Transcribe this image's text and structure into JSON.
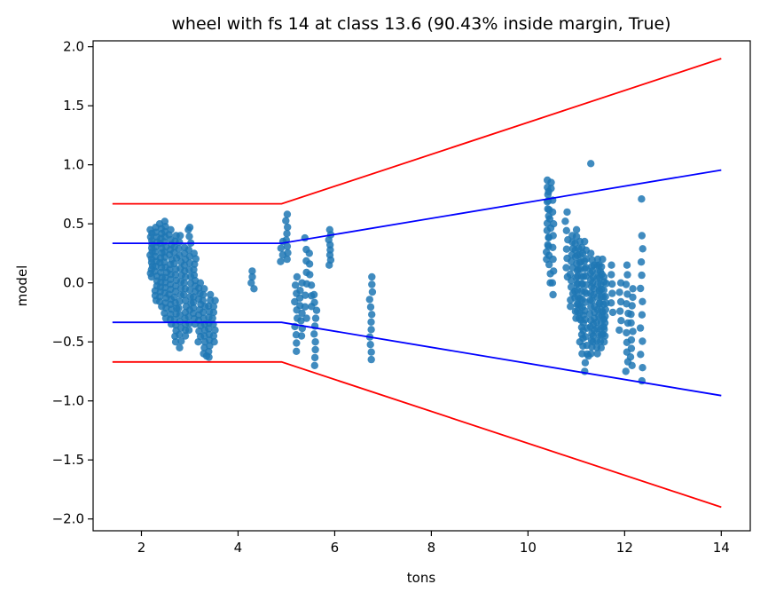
{
  "chart_data": {
    "type": "scatter",
    "title": "wheel with fs 14 at class 13.6 (90.43% inside margin, True)",
    "xlabel": "tons",
    "ylabel": "model",
    "xlim": [
      1.0,
      14.6
    ],
    "ylim": [
      -2.1,
      2.05
    ],
    "xticks": [
      2,
      4,
      6,
      8,
      10,
      12,
      14
    ],
    "xtick_labels": [
      "2",
      "4",
      "6",
      "8",
      "10",
      "12",
      "14"
    ],
    "yticks": [
      -2.0,
      -1.5,
      -1.0,
      -0.5,
      0.0,
      0.5,
      1.0,
      1.5,
      2.0
    ],
    "ytick_labels": [
      "−2.0",
      "−1.5",
      "−1.0",
      "−0.5",
      "0.0",
      "0.5",
      "1.0",
      "1.5",
      "2.0"
    ],
    "grid": false,
    "colors": {
      "points": "#1f77b4",
      "outer_margin": "#ff0000",
      "inner_margin": "#0000ff"
    },
    "lines": [
      {
        "color": "#ff0000",
        "x": [
          1.4,
          4.9,
          14.0
        ],
        "y": [
          0.67,
          0.67,
          1.9
        ]
      },
      {
        "color": "#0000ff",
        "x": [
          1.4,
          4.9,
          14.0
        ],
        "y": [
          0.335,
          0.335,
          0.955
        ]
      },
      {
        "color": "#0000ff",
        "x": [
          1.4,
          4.9,
          14.0
        ],
        "y": [
          -0.335,
          -0.335,
          -0.955
        ]
      },
      {
        "color": "#ff0000",
        "x": [
          1.4,
          4.9,
          14.0
        ],
        "y": [
          -0.67,
          -0.67,
          -1.9
        ]
      }
    ],
    "scatter_columns": [
      {
        "x": 2.2,
        "ymin": 0.05,
        "ymax": 0.45,
        "n": 14
      },
      {
        "x": 2.3,
        "ymin": -0.15,
        "ymax": 0.47,
        "n": 16
      },
      {
        "x": 2.4,
        "ymin": -0.2,
        "ymax": 0.5,
        "n": 18
      },
      {
        "x": 2.5,
        "ymin": -0.3,
        "ymax": 0.52,
        "n": 20
      },
      {
        "x": 2.6,
        "ymin": -0.35,
        "ymax": 0.45,
        "n": 20
      },
      {
        "x": 2.7,
        "ymin": -0.5,
        "ymax": 0.4,
        "n": 20
      },
      {
        "x": 2.8,
        "ymin": -0.55,
        "ymax": 0.4,
        "n": 18
      },
      {
        "x": 2.9,
        "ymin": -0.45,
        "ymax": 0.3,
        "n": 16
      },
      {
        "x": 3.0,
        "ymin": -0.4,
        "ymax": 0.45,
        "n": 16
      },
      {
        "x": 3.1,
        "ymin": -0.35,
        "ymax": 0.25,
        "n": 14
      },
      {
        "x": 3.2,
        "ymin": -0.5,
        "ymax": 0.0,
        "n": 12
      },
      {
        "x": 3.3,
        "ymin": -0.6,
        "ymax": -0.05,
        "n": 12
      },
      {
        "x": 3.4,
        "ymin": -0.63,
        "ymax": -0.1,
        "n": 12
      },
      {
        "x": 3.5,
        "ymin": -0.5,
        "ymax": -0.15,
        "n": 8
      },
      {
        "x": 4.3,
        "ymin": -0.05,
        "ymax": 0.1,
        "n": 4
      },
      {
        "x": 4.9,
        "ymin": 0.18,
        "ymax": 0.35,
        "n": 4
      },
      {
        "x": 5.0,
        "ymin": 0.2,
        "ymax": 0.58,
        "n": 8
      },
      {
        "x": 5.2,
        "ymin": -0.58,
        "ymax": 0.05,
        "n": 10
      },
      {
        "x": 5.3,
        "ymin": -0.45,
        "ymax": 0.0,
        "n": 8
      },
      {
        "x": 5.4,
        "ymin": -0.3,
        "ymax": 0.38,
        "n": 8
      },
      {
        "x": 5.5,
        "ymin": -0.2,
        "ymax": 0.25,
        "n": 6
      },
      {
        "x": 5.6,
        "ymin": -0.7,
        "ymax": -0.1,
        "n": 10
      },
      {
        "x": 5.9,
        "ymin": 0.15,
        "ymax": 0.45,
        "n": 8
      },
      {
        "x": 6.75,
        "ymin": -0.65,
        "ymax": 0.05,
        "n": 12
      },
      {
        "x": 10.4,
        "ymin": 0.2,
        "ymax": 0.87,
        "n": 12
      },
      {
        "x": 10.45,
        "ymin": 0.0,
        "ymax": 0.85,
        "n": 12
      },
      {
        "x": 10.5,
        "ymin": -0.1,
        "ymax": 0.8,
        "n": 10
      },
      {
        "x": 10.8,
        "ymin": 0.05,
        "ymax": 0.6,
        "n": 8
      },
      {
        "x": 10.9,
        "ymin": -0.2,
        "ymax": 0.4,
        "n": 12
      },
      {
        "x": 11.0,
        "ymin": -0.3,
        "ymax": 0.45,
        "n": 14
      },
      {
        "x": 11.05,
        "ymin": -0.3,
        "ymax": 0.35,
        "n": 12
      },
      {
        "x": 11.1,
        "ymin": -0.5,
        "ymax": 0.3,
        "n": 14
      },
      {
        "x": 11.15,
        "ymin": -0.6,
        "ymax": 0.25,
        "n": 14
      },
      {
        "x": 11.2,
        "ymin": -0.75,
        "ymax": 0.35,
        "n": 16
      },
      {
        "x": 11.3,
        "ymin": -0.6,
        "ymax": 0.25,
        "n": 16
      },
      {
        "x": 11.35,
        "ymin": -0.5,
        "ymax": 0.15,
        "n": 14
      },
      {
        "x": 11.45,
        "ymin": -0.6,
        "ymax": 0.2,
        "n": 16
      },
      {
        "x": 11.5,
        "ymin": -0.55,
        "ymax": 0.15,
        "n": 14
      },
      {
        "x": 11.55,
        "ymin": -0.5,
        "ymax": 0.2,
        "n": 12
      },
      {
        "x": 11.6,
        "ymin": -0.45,
        "ymax": 0.05,
        "n": 10
      },
      {
        "x": 11.75,
        "ymin": -0.25,
        "ymax": 0.15,
        "n": 6
      },
      {
        "x": 11.9,
        "ymin": -0.4,
        "ymax": 0.0,
        "n": 6
      },
      {
        "x": 12.05,
        "ymin": -0.75,
        "ymax": 0.15,
        "n": 12
      },
      {
        "x": 12.15,
        "ymin": -0.7,
        "ymax": -0.05,
        "n": 10
      },
      {
        "x": 12.35,
        "ymin": -0.83,
        "ymax": 0.4,
        "n": 12
      }
    ],
    "scatter_points": [
      {
        "x": 11.3,
        "y": 1.01
      },
      {
        "x": 12.35,
        "y": 0.71
      },
      {
        "x": 3.0,
        "y": 0.47
      },
      {
        "x": 11.25,
        "y": -0.62
      },
      {
        "x": 3.35,
        "y": -0.62
      }
    ]
  }
}
